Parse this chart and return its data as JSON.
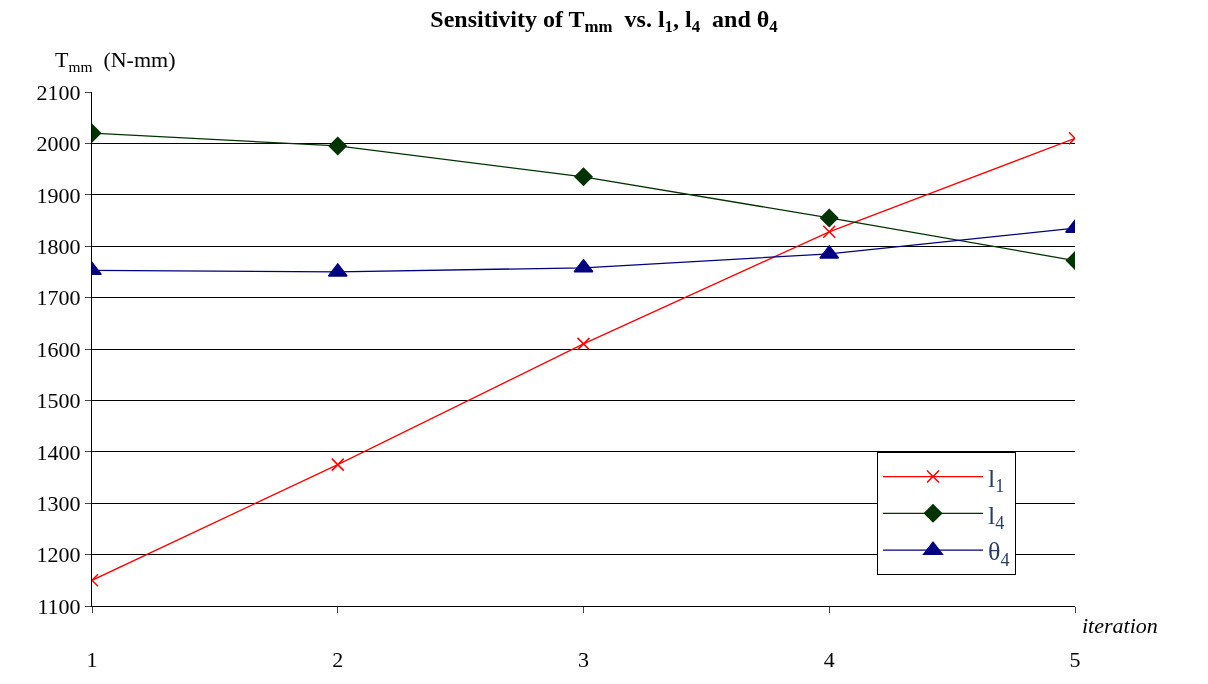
{
  "chart_data": {
    "type": "line",
    "title": "Sensitivity of T$_{mm}$  vs. l$_{1}$, l$_{4}$  and θ$_{4}$",
    "ylabel": "T$_{mm}$  (N-mm)",
    "xlabel": "iteration",
    "x": [
      1,
      2,
      3,
      4,
      5
    ],
    "series": [
      {
        "name": "l$_{1}$",
        "color": "#ff0000",
        "marker": "cross",
        "values": [
          1150,
          1375,
          1610,
          1828,
          2010
        ]
      },
      {
        "name": "l$_{4}$",
        "color": "#003300",
        "marker": "diamond",
        "values": [
          2020,
          1995,
          1935,
          1855,
          1772
        ]
      },
      {
        "name": "θ$_{4}$",
        "color": "#000080",
        "marker": "triangle",
        "values": [
          1753,
          1750,
          1758,
          1785,
          1835
        ]
      }
    ],
    "xlim": [
      1,
      5
    ],
    "xticks": [
      1,
      2,
      3,
      4,
      5
    ],
    "ylim": [
      1100,
      2100
    ],
    "yticks": [
      1100,
      1200,
      1300,
      1400,
      1500,
      1600,
      1700,
      1800,
      1900,
      2000,
      2100
    ],
    "grid": "y",
    "legend": "bottom right",
    "line_style": "solid"
  }
}
